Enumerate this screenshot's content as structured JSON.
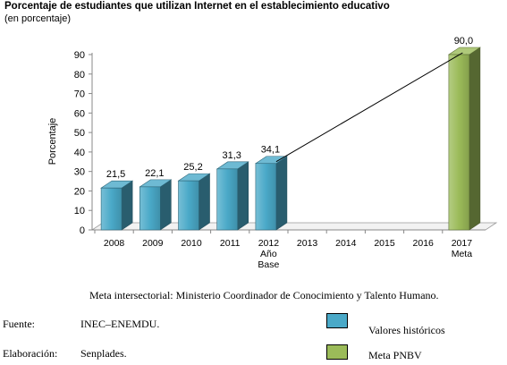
{
  "chart_data": {
    "type": "bar",
    "title": "Porcentaje de estudiantes que utilizan Internet en el establecimiento educativo",
    "subtitle": "(en porcentaje)",
    "ylabel": "Porcentaje",
    "xlabel": "",
    "ylim": [
      0,
      90
    ],
    "yticks": [
      "0",
      "10",
      "20",
      "30",
      "40",
      "50",
      "60",
      "70",
      "80",
      "90"
    ],
    "categories": [
      "2008",
      "2009",
      "2010",
      "2011",
      "2012",
      "2013",
      "2014",
      "2015",
      "2016",
      "2017"
    ],
    "category_sublabels": {
      "2012": [
        "Año",
        "Base"
      ],
      "2017": [
        "Meta"
      ]
    },
    "series": [
      {
        "name": "Valores históricos",
        "color": "#4aa9c8",
        "values": [
          21.5,
          22.1,
          25.2,
          31.3,
          34.1,
          null,
          null,
          null,
          null,
          null
        ]
      },
      {
        "name": "Meta PNBV",
        "color": "#9bbb59",
        "values": [
          null,
          null,
          null,
          null,
          null,
          null,
          null,
          null,
          null,
          90.0
        ]
      }
    ],
    "data_labels": [
      "21,5",
      "22,1",
      "25,2",
      "31,3",
      "34,1",
      null,
      null,
      null,
      null,
      "90,0"
    ],
    "trend_line": {
      "from": "2012",
      "to": "2017"
    },
    "grid": false,
    "legend_position": "bottom-right"
  },
  "footer": {
    "note": "Meta intersectorial: Ministerio Coordinador de Conocimiento y Talento Humano.",
    "source_label": "Fuente:",
    "source_value": "INEC–ENEMDU.",
    "prepared_label": "Elaboración:",
    "prepared_value": "Senplades."
  },
  "legend": {
    "historic": "Valores históricos",
    "target": "Meta PNBV",
    "historic_color": "#4aa9c8",
    "target_color": "#9bbb59"
  }
}
